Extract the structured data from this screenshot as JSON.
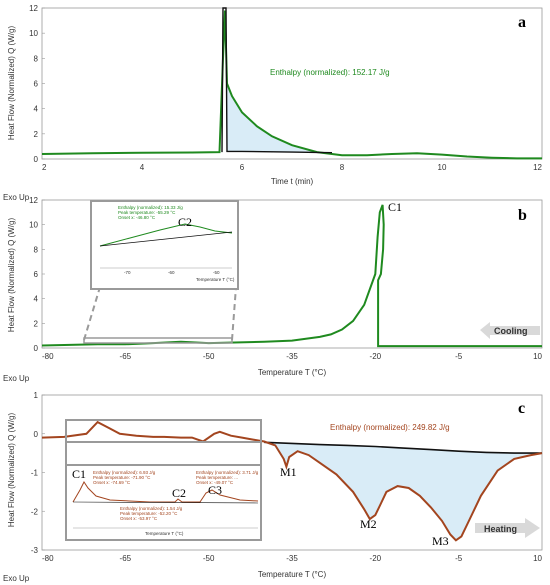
{
  "colors": {
    "green": "#1f8a1f",
    "brown": "#a3451f",
    "black": "#111111",
    "fill": "#d9ecf7",
    "grayBox": "#9a9a9a"
  },
  "chart_data": [
    {
      "panel": "a",
      "type": "line",
      "xlabel": "Time t (min)",
      "ylabel": "Heat Flow (Normalized) Q (W/g)",
      "exo_label": "Exo Up",
      "xlim": [
        2,
        12
      ],
      "ylim": [
        0,
        12
      ],
      "xticks": [
        "2",
        "4",
        "6",
        "8",
        "10",
        "12"
      ],
      "yticks": [
        "0",
        "2",
        "4",
        "6",
        "8",
        "10",
        "12"
      ],
      "annotation": "Enthalpy (normalized): 152.17 J/g",
      "series": [
        {
          "color": "green",
          "x": [
            2,
            3,
            4,
            5,
            5.55,
            5.62,
            5.66,
            5.7,
            5.8,
            6.0,
            6.3,
            6.6,
            7.0,
            7.5,
            8.0,
            8.5,
            9.0,
            9.5,
            10.0,
            10.5,
            11.0,
            11.5,
            12
          ],
          "y": [
            0.4,
            0.45,
            0.5,
            0.52,
            0.55,
            8.0,
            11.8,
            6.0,
            5.0,
            3.7,
            2.6,
            1.8,
            1.1,
            0.55,
            0.3,
            0.3,
            0.4,
            0.45,
            0.35,
            0.2,
            0.1,
            0.05,
            0.05
          ]
        },
        {
          "color": "black",
          "x": [
            5.6,
            5.62,
            5.68,
            5.7,
            6.0,
            7.0,
            7.8
          ],
          "y": [
            0.55,
            12.0,
            12.0,
            0.6,
            0.6,
            0.55,
            0.5
          ]
        }
      ]
    },
    {
      "panel": "b",
      "type": "line",
      "xlabel": "Temperature T (°C)",
      "ylabel": "Heat Flow (Normalized) Q (W/g)",
      "exo_label": "Exo Up",
      "xlim": [
        -80,
        10
      ],
      "ylim": [
        0,
        12
      ],
      "xticks": [
        "-80",
        "-65",
        "-50",
        "-35",
        "-20",
        "-5",
        "10"
      ],
      "yticks": [
        "0",
        "2",
        "4",
        "6",
        "8",
        "10",
        "12"
      ],
      "peak_label": "C1",
      "arrow_label": "Cooling",
      "series": [
        {
          "color": "green",
          "x": [
            10,
            -19.5,
            -19.5,
            -19.0,
            -18.6,
            -18.5,
            -18.7,
            -19.2,
            -19.6,
            -20.0,
            -22,
            -24,
            -26,
            -28,
            -30,
            -35,
            -40,
            -50,
            -55,
            -60,
            -65,
            -70,
            -80
          ],
          "y": [
            0.15,
            0.15,
            5.5,
            6.0,
            8.0,
            10.0,
            11.6,
            11.0,
            9.0,
            6.0,
            3.5,
            2.2,
            1.5,
            1.1,
            0.9,
            0.6,
            0.5,
            0.4,
            0.5,
            0.4,
            0.3,
            0.3,
            0.2
          ]
        }
      ],
      "inset": {
        "peak_label": "C2",
        "annotation_lines": [
          "Enthalpy (normalized): 15.33 J/g",
          "Peak temperature: -55.29 °C",
          "Onset x: -46.80 °C"
        ],
        "xlabel": "Temperature T (°C)",
        "xticks": [
          "-70",
          "-60",
          "-50"
        ]
      }
    },
    {
      "panel": "c",
      "type": "line",
      "xlabel": "Temperature T (°C)",
      "ylabel": "Heat Flow (Normalized) Q (W/g)",
      "exo_label": "Exo Up",
      "xlim": [
        -80,
        10
      ],
      "ylim": [
        -3,
        1
      ],
      "xticks": [
        "-80",
        "-65",
        "-50",
        "-35",
        "-20",
        "-5",
        "10"
      ],
      "yticks": [
        "1",
        "0",
        "-1",
        "-2",
        "-3"
      ],
      "annotation": "Enthalpy (normalized): 249.82 J/g",
      "peak_labels": [
        "M1",
        "M2",
        "M3"
      ],
      "arrow_label": "Heating",
      "series": [
        {
          "color": "brown",
          "x": [
            -80,
            -76,
            -72,
            -70,
            -68,
            -66,
            -63,
            -60,
            -58,
            -55,
            -53,
            -52,
            -51,
            -49,
            -48,
            -46,
            -44,
            -42,
            -40,
            -38,
            -36.5,
            -36,
            -35.5,
            -34,
            -32,
            -30,
            -27,
            -24,
            -22,
            -21,
            -20,
            -19,
            -18,
            -16,
            -14,
            -12,
            -10,
            -8,
            -6.5,
            -5.5,
            -4.5,
            -3,
            -1,
            2,
            5,
            8,
            10
          ],
          "y": [
            -0.1,
            -0.08,
            0.0,
            0.3,
            0.15,
            0.0,
            -0.05,
            -0.08,
            -0.08,
            -0.1,
            -0.1,
            -0.15,
            -0.2,
            0.0,
            0.05,
            -0.05,
            -0.1,
            -0.15,
            -0.2,
            -0.3,
            -0.65,
            -0.85,
            -0.6,
            -0.45,
            -0.55,
            -0.75,
            -1.05,
            -1.5,
            -1.95,
            -2.2,
            -2.1,
            -1.8,
            -1.5,
            -1.35,
            -1.4,
            -1.6,
            -1.9,
            -2.25,
            -2.6,
            -2.75,
            -2.65,
            -2.2,
            -1.6,
            -0.95,
            -0.65,
            -0.55,
            -0.5
          ]
        },
        {
          "color": "black",
          "x": [
            -40,
            -35,
            -30,
            -25,
            -20,
            -15,
            -10,
            -5,
            0,
            5,
            10
          ],
          "y": [
            -0.22,
            -0.25,
            -0.28,
            -0.3,
            -0.33,
            -0.37,
            -0.41,
            -0.45,
            -0.48,
            -0.5,
            -0.5
          ]
        }
      ],
      "inset": {
        "peak_labels": [
          "C1",
          "C2",
          "C3"
        ],
        "annotation_lines_c1": [
          "Enthalpy (normalized): 6.93 J/g",
          "Peak temperature: -71.90 °C",
          "Onset x: -74.69 °C"
        ],
        "annotation_lines_c3": [
          "Enthalpy (normalized): 3.71 J/g",
          "Peak temperature: ...",
          "Onset x: -49.07 °C"
        ],
        "annotation_lines_c2": [
          "Enthalpy (normalized): 1.54 J/g",
          "Peak temperature: -52.20 °C",
          "Onset x: -53.97 °C"
        ],
        "xlabel": "Temperature T (°C)"
      }
    }
  ]
}
